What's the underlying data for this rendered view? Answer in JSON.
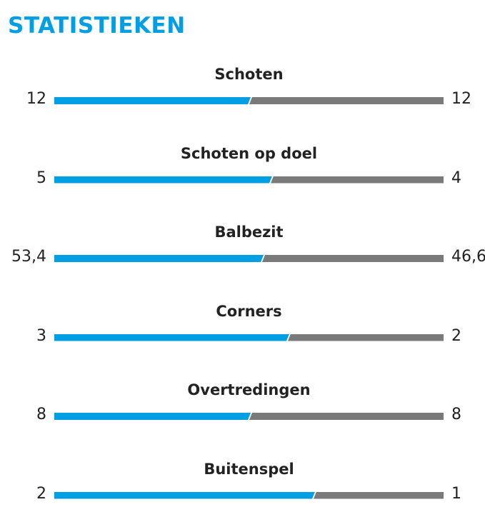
{
  "title": "STATISTIEKEN",
  "colors": {
    "home": "#009fe3",
    "away": "#7a7a7a"
  },
  "stats": [
    {
      "label": "Schoten",
      "home": "12",
      "away": "12",
      "home_value": 12,
      "away_value": 12
    },
    {
      "label": "Schoten op doel",
      "home": "5",
      "away": "4",
      "home_value": 5,
      "away_value": 4
    },
    {
      "label": "Balbezit",
      "home": "53,4",
      "away": "46,6",
      "home_value": 53.4,
      "away_value": 46.6
    },
    {
      "label": "Corners",
      "home": "3",
      "away": "2",
      "home_value": 3,
      "away_value": 2
    },
    {
      "label": "Overtredingen",
      "home": "8",
      "away": "8",
      "home_value": 8,
      "away_value": 8
    },
    {
      "label": "Buitenspel",
      "home": "2",
      "away": "1",
      "home_value": 2,
      "away_value": 1
    }
  ]
}
